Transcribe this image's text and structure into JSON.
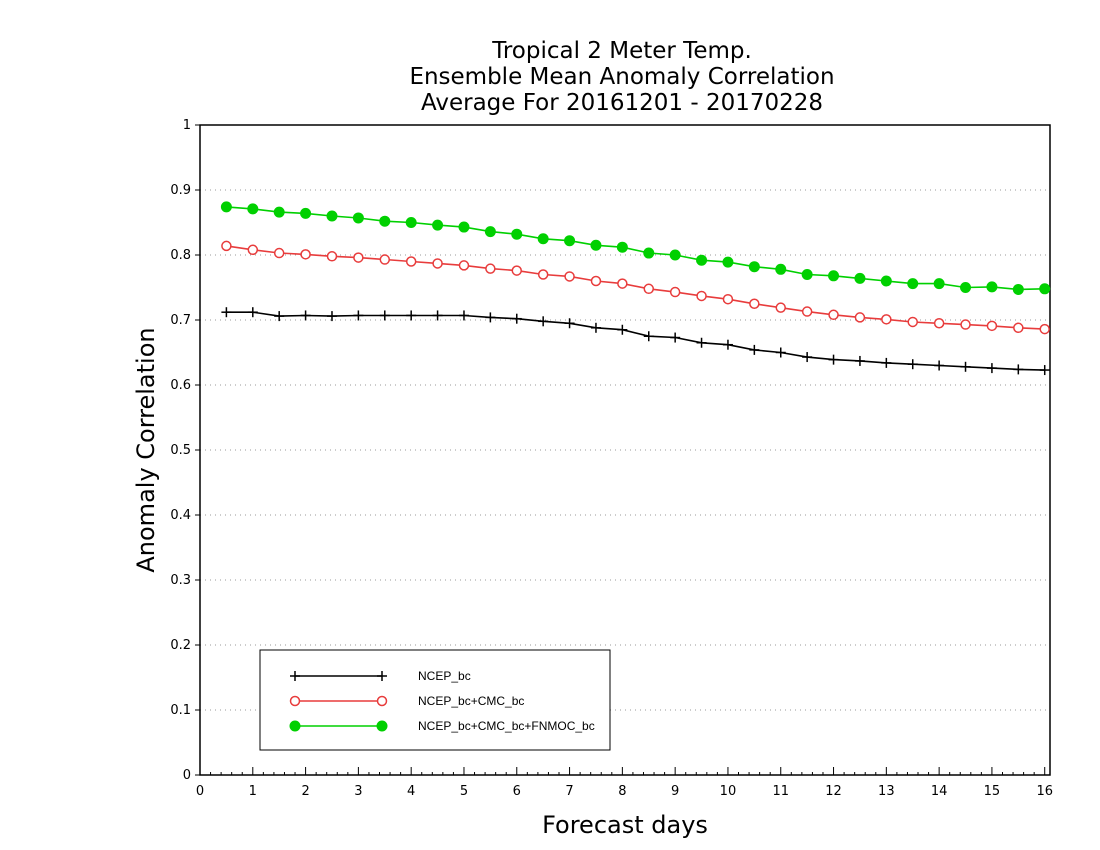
{
  "chart_data": {
    "type": "line",
    "title_lines": [
      "Tropical 2 Meter Temp.",
      "Ensemble Mean Anomaly Correlation",
      "Average For 20161201 - 20170228"
    ],
    "xlabel": "Forecast days",
    "ylabel": "Anomaly Correlation",
    "xlim": [
      0,
      16.1
    ],
    "ylim": [
      0,
      1
    ],
    "xticks": [
      "0",
      "1",
      "2",
      "3",
      "4",
      "5",
      "6",
      "7",
      "8",
      "9",
      "10",
      "11",
      "12",
      "13",
      "14",
      "15",
      "16"
    ],
    "yticks": [
      "0",
      "0.1",
      "0.2",
      "0.3",
      "0.4",
      "0.5",
      "0.6",
      "0.7",
      "0.8",
      "0.9",
      "1"
    ],
    "grid": "horizontal dotted",
    "legend_position": "bottom-left",
    "x": [
      0.5,
      1,
      1.5,
      2,
      2.5,
      3,
      3.5,
      4,
      4.5,
      5,
      5.5,
      6,
      6.5,
      7,
      7.5,
      8,
      8.5,
      9,
      9.5,
      10,
      10.5,
      11,
      11.5,
      12,
      12.5,
      13,
      13.5,
      14,
      14.5,
      15,
      15.5,
      16
    ],
    "series": [
      {
        "name": "NCEP_bc",
        "color": "#000000",
        "marker": "plus",
        "values": [
          0.712,
          0.712,
          0.706,
          0.707,
          0.706,
          0.707,
          0.707,
          0.707,
          0.707,
          0.707,
          0.704,
          0.702,
          0.698,
          0.695,
          0.688,
          0.685,
          0.675,
          0.673,
          0.665,
          0.662,
          0.654,
          0.65,
          0.643,
          0.639,
          0.637,
          0.634,
          0.632,
          0.63,
          0.628,
          0.626,
          0.624,
          0.623
        ]
      },
      {
        "name": "NCEP_bc+CMC_bc",
        "color": "#e83c3c",
        "marker": "open-circle",
        "values": [
          0.814,
          0.808,
          0.803,
          0.801,
          0.798,
          0.796,
          0.793,
          0.79,
          0.787,
          0.784,
          0.779,
          0.776,
          0.77,
          0.767,
          0.76,
          0.756,
          0.748,
          0.743,
          0.737,
          0.732,
          0.725,
          0.719,
          0.713,
          0.708,
          0.704,
          0.701,
          0.697,
          0.695,
          0.693,
          0.691,
          0.688,
          0.686
        ]
      },
      {
        "name": "NCEP_bc+CMC_bc+FNMOC_bc",
        "color": "#00d000",
        "marker": "filled-circle",
        "values": [
          0.874,
          0.871,
          0.866,
          0.864,
          0.86,
          0.857,
          0.852,
          0.85,
          0.846,
          0.843,
          0.836,
          0.832,
          0.825,
          0.822,
          0.815,
          0.812,
          0.803,
          0.8,
          0.792,
          0.789,
          0.782,
          0.778,
          0.77,
          0.768,
          0.764,
          0.76,
          0.756,
          0.756,
          0.75,
          0.751,
          0.747,
          0.748
        ]
      }
    ]
  }
}
